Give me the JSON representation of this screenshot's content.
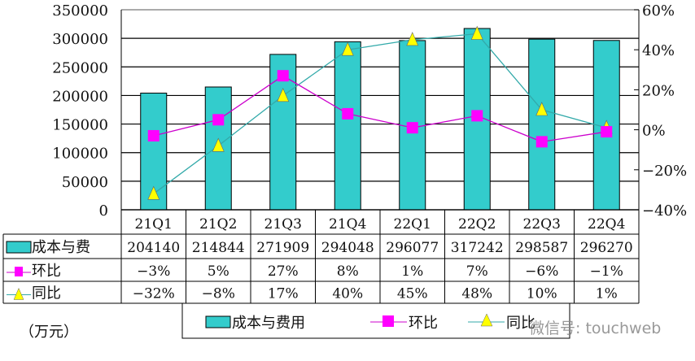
{
  "chart_data": {
    "type": "bar",
    "categories": [
      "21Q1",
      "21Q2",
      "21Q3",
      "21Q4",
      "22Q1",
      "22Q2",
      "22Q3",
      "22Q4"
    ],
    "series": [
      {
        "name": "成本与费用",
        "table_label": "成本与费",
        "kind": "bar",
        "axis": "left",
        "color": "#33CCCC",
        "values": [
          204140,
          214844,
          271909,
          294048,
          296077,
          317242,
          298587,
          296270
        ],
        "labels": [
          "204140",
          "214844",
          "271909",
          "294048",
          "296077",
          "317242",
          "298587",
          "296270"
        ]
      },
      {
        "name": "环比",
        "table_label": "环比",
        "kind": "line",
        "axis": "right",
        "marker": "square",
        "color": "#FF00FF",
        "line_color": "#CC00CC",
        "values": [
          -3,
          5,
          27,
          8,
          1,
          7,
          -6,
          -1
        ],
        "labels": [
          "−3%",
          "5%",
          "27%",
          "8%",
          "1%",
          "7%",
          "−6%",
          "−1%"
        ]
      },
      {
        "name": "同比",
        "table_label": "同比",
        "kind": "line",
        "axis": "right",
        "marker": "triangle",
        "color": "#FFFF00",
        "line_color": "#33AAAA",
        "values": [
          -32,
          -8,
          17,
          40,
          45,
          48,
          10,
          1
        ],
        "labels": [
          "−32%",
          "−8%",
          "17%",
          "40%",
          "45%",
          "48%",
          "10%",
          "1%"
        ]
      }
    ],
    "y_left": {
      "range": [
        0,
        350000
      ],
      "ticks": [
        "0",
        "50000",
        "100000",
        "150000",
        "200000",
        "250000",
        "300000",
        "350000"
      ]
    },
    "y_right": {
      "range": [
        -40,
        60
      ],
      "ticks": [
        "-40%",
        "-20%",
        "0%",
        "20%",
        "40%",
        "60%"
      ]
    },
    "grid": true,
    "legend_placement": "bottom",
    "unit_note": "（万元）",
    "data_table": true
  },
  "watermark": "微信号: touchweb"
}
